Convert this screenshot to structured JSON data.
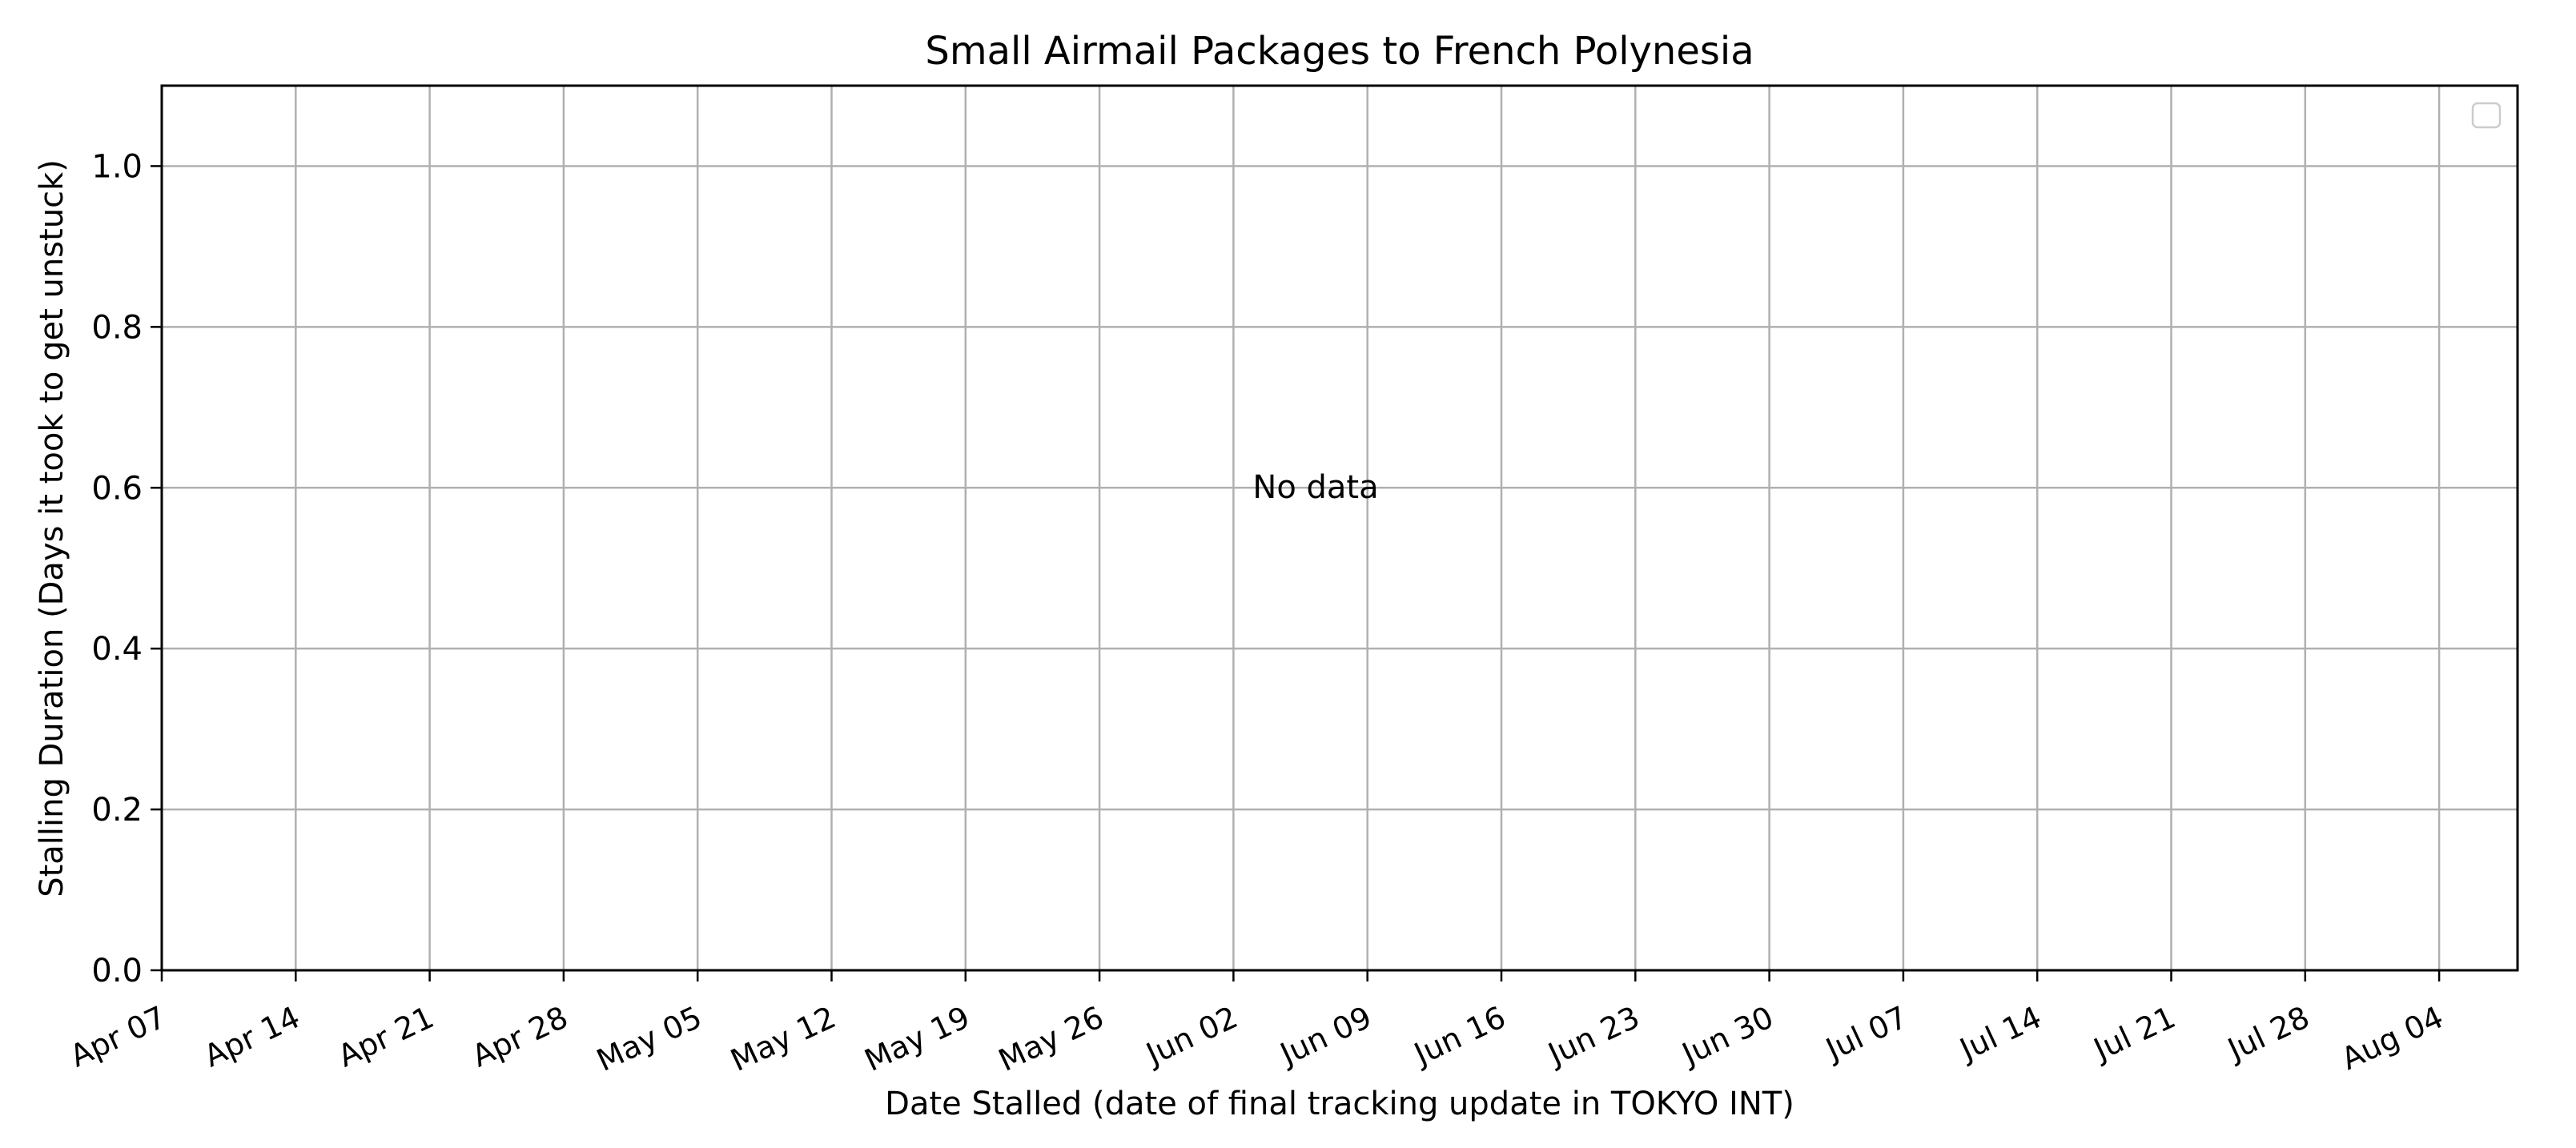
{
  "chart_data": {
    "type": "scatter",
    "title": "Small Airmail Packages to French Polynesia",
    "xlabel": "Date Stalled (date of final tracking update in TOKYO INT)",
    "ylabel": "Stalling Duration (Days it took to get unstuck)",
    "annotation": "No data",
    "x_ticks": [
      "Apr 07",
      "Apr 14",
      "Apr 21",
      "Apr 28",
      "May 05",
      "May 12",
      "May 19",
      "May 26",
      "Jun 02",
      "Jun 09",
      "Jun 16",
      "Jun 23",
      "Jun 30",
      "Jul 07",
      "Jul 14",
      "Jul 21",
      "Jul 28",
      "Aug 04"
    ],
    "y_ticks": [
      "0.0",
      "0.2",
      "0.4",
      "0.6",
      "0.8",
      "1.0"
    ],
    "ylim": [
      0,
      1.1
    ],
    "grid": true,
    "legend": "top-right, empty",
    "series": []
  }
}
